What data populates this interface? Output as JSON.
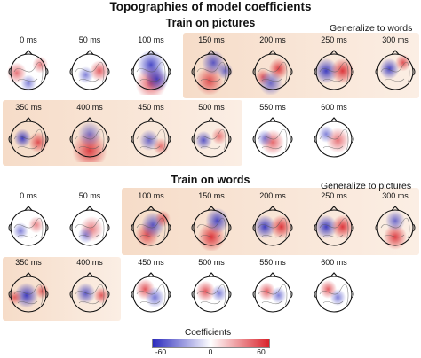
{
  "title": "Topographies of model coefficients",
  "panels": [
    {
      "title": "Train on pictures",
      "generalize_label": "Generalize to words",
      "rows": [
        {
          "times": [
            "0 ms",
            "50 ms",
            "100 ms",
            "150 ms",
            "200 ms",
            "250 ms",
            "300 ms"
          ],
          "maps": [
            {
              "blobs": [
                [
                  "red",
                  0.2,
                  0.55,
                  0.25,
                  0.35
                ],
                [
                  "red",
                  0.8,
                  0.35,
                  0.2,
                  0.3
                ],
                [
                  "blue",
                  0.5,
                  0.8,
                  0.2,
                  0.3
                ]
              ]
            },
            {
              "blobs": [
                [
                  "red",
                  0.75,
                  0.5,
                  0.25,
                  0.45
                ],
                [
                  "blue",
                  0.4,
                  0.6,
                  0.2,
                  0.3
                ]
              ]
            },
            {
              "blobs": [
                [
                  "red",
                  0.5,
                  0.8,
                  0.4,
                  0.5
                ],
                [
                  "blue",
                  0.5,
                  0.35,
                  0.35,
                  0.6
                ],
                [
                  "blue",
                  0.65,
                  0.7,
                  0.3,
                  0.6
                ]
              ]
            },
            {
              "blobs": [
                [
                  "red",
                  0.45,
                  0.75,
                  0.35,
                  0.5
                ],
                [
                  "blue",
                  0.55,
                  0.3,
                  0.3,
                  0.5
                ],
                [
                  "blue",
                  0.85,
                  0.5,
                  0.2,
                  0.4
                ]
              ]
            },
            {
              "blobs": [
                [
                  "red",
                  0.65,
                  0.45,
                  0.25,
                  0.6
                ],
                [
                  "red",
                  0.25,
                  0.65,
                  0.2,
                  0.4
                ],
                [
                  "blue",
                  0.45,
                  0.8,
                  0.3,
                  0.4
                ]
              ]
            },
            {
              "blobs": [
                [
                  "blue",
                  0.3,
                  0.5,
                  0.3,
                  0.85
                ],
                [
                  "red",
                  0.72,
                  0.5,
                  0.3,
                  0.85
                ]
              ]
            },
            {
              "blobs": [
                [
                  "blue",
                  0.35,
                  0.45,
                  0.25,
                  0.6
                ],
                [
                  "red",
                  0.7,
                  0.3,
                  0.2,
                  0.5
                ]
              ]
            }
          ]
        },
        {
          "times": [
            "350 ms",
            "400 ms",
            "450 ms",
            "500 ms",
            "550 ms",
            "600 ms"
          ],
          "maps": [
            {
              "blobs": [
                [
                  "blue",
                  0.35,
                  0.5,
                  0.22,
                  0.7
                ],
                [
                  "red",
                  0.75,
                  0.6,
                  0.25,
                  0.5
                ]
              ]
            },
            {
              "blobs": [
                [
                  "red",
                  0.5,
                  0.8,
                  0.45,
                  0.6
                ],
                [
                  "blue",
                  0.5,
                  0.4,
                  0.3,
                  0.3
                ]
              ]
            },
            {
              "blobs": [
                [
                  "blue",
                  0.45,
                  0.55,
                  0.25,
                  0.4
                ],
                [
                  "red",
                  0.75,
                  0.7,
                  0.2,
                  0.3
                ]
              ]
            },
            {
              "blobs": [
                [
                  "blue",
                  0.3,
                  0.55,
                  0.22,
                  0.5
                ],
                [
                  "red",
                  0.7,
                  0.45,
                  0.2,
                  0.3
                ]
              ]
            },
            {
              "blobs": [
                [
                  "red",
                  0.5,
                  0.6,
                  0.3,
                  0.4
                ],
                [
                  "blue",
                  0.3,
                  0.5,
                  0.2,
                  0.3
                ]
              ]
            },
            {
              "blobs": [
                [
                  "red",
                  0.6,
                  0.55,
                  0.3,
                  0.35
                ],
                [
                  "blue",
                  0.3,
                  0.4,
                  0.2,
                  0.3
                ]
              ]
            }
          ]
        }
      ]
    },
    {
      "title": "Train on words",
      "generalize_label": "Generalize to pictures",
      "rows": [
        {
          "times": [
            "0 ms",
            "50 ms",
            "100 ms",
            "150 ms",
            "200 ms",
            "250 ms",
            "300 ms"
          ],
          "maps": [
            {
              "blobs": [
                [
                  "blue",
                  0.3,
                  0.6,
                  0.2,
                  0.3
                ],
                [
                  "red",
                  0.7,
                  0.45,
                  0.2,
                  0.25
                ]
              ]
            },
            {
              "blobs": [
                [
                  "red",
                  0.55,
                  0.55,
                  0.3,
                  0.3
                ],
                [
                  "blue",
                  0.4,
                  0.7,
                  0.2,
                  0.25
                ]
              ]
            },
            {
              "blobs": [
                [
                  "red",
                  0.4,
                  0.7,
                  0.3,
                  0.5
                ],
                [
                  "blue",
                  0.55,
                  0.45,
                  0.3,
                  0.5
                ],
                [
                  "red",
                  0.8,
                  0.3,
                  0.2,
                  0.4
                ]
              ]
            },
            {
              "blobs": [
                [
                  "red",
                  0.5,
                  0.75,
                  0.35,
                  0.7
                ],
                [
                  "blue",
                  0.65,
                  0.35,
                  0.3,
                  0.6
                ]
              ]
            },
            {
              "blobs": [
                [
                  "blue",
                  0.3,
                  0.5,
                  0.28,
                  0.85
                ],
                [
                  "red",
                  0.72,
                  0.5,
                  0.28,
                  0.85
                ]
              ]
            },
            {
              "blobs": [
                [
                  "blue",
                  0.3,
                  0.5,
                  0.28,
                  0.8
                ],
                [
                  "red",
                  0.72,
                  0.5,
                  0.28,
                  0.8
                ]
              ]
            },
            {
              "blobs": [
                [
                  "red",
                  0.5,
                  0.75,
                  0.3,
                  0.6
                ],
                [
                  "blue",
                  0.5,
                  0.35,
                  0.25,
                  0.4
                ]
              ]
            }
          ]
        },
        {
          "times": [
            "350 ms",
            "400 ms",
            "450 ms",
            "500 ms",
            "550 ms",
            "600 ms"
          ],
          "maps": [
            {
              "blobs": [
                [
                  "blue",
                  0.45,
                  0.55,
                  0.3,
                  0.7
                ],
                [
                  "red",
                  0.85,
                  0.45,
                  0.18,
                  0.4
                ],
                [
                  "red",
                  0.15,
                  0.6,
                  0.18,
                  0.4
                ]
              ]
            },
            {
              "blobs": [
                [
                  "blue",
                  0.4,
                  0.5,
                  0.25,
                  0.5
                ],
                [
                  "red",
                  0.8,
                  0.55,
                  0.2,
                  0.45
                ]
              ]
            },
            {
              "blobs": [
                [
                  "red",
                  0.35,
                  0.4,
                  0.25,
                  0.5
                ],
                [
                  "blue",
                  0.6,
                  0.6,
                  0.25,
                  0.35
                ]
              ]
            },
            {
              "blobs": [
                [
                  "red",
                  0.35,
                  0.45,
                  0.25,
                  0.5
                ],
                [
                  "blue",
                  0.7,
                  0.5,
                  0.2,
                  0.3
                ]
              ]
            },
            {
              "blobs": [
                [
                  "red",
                  0.35,
                  0.45,
                  0.22,
                  0.45
                ],
                [
                  "blue",
                  0.65,
                  0.55,
                  0.2,
                  0.3
                ]
              ]
            },
            {
              "blobs": [
                [
                  "red",
                  0.35,
                  0.4,
                  0.22,
                  0.45
                ],
                [
                  "blue",
                  0.6,
                  0.6,
                  0.2,
                  0.3
                ]
              ]
            }
          ]
        }
      ]
    }
  ],
  "colorbar": {
    "label": "Coefficients",
    "ticks": [
      "-60",
      "0",
      "60"
    ],
    "colors": {
      "negative": "#2b2bbd",
      "zero": "#ffffff",
      "positive": "#d9232b"
    }
  },
  "colors": {
    "highlight": "#f6dcc8",
    "highlight_fade": "#fbeee4",
    "red": "#d9232b",
    "blue": "#2b2bbd"
  }
}
